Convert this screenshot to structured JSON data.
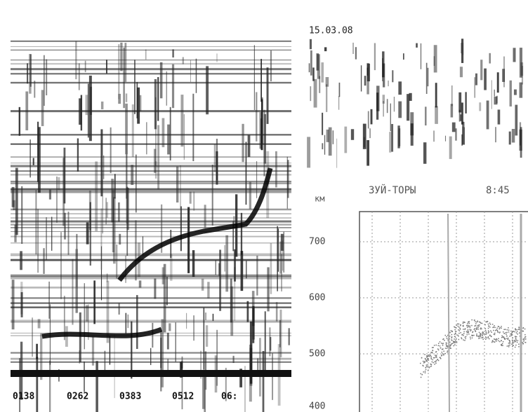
{
  "header": {
    "date": "15.03.08"
  },
  "left_panel": {
    "x_labels": [
      "0138",
      "0262",
      "0383",
      "0512",
      "06:"
    ]
  },
  "right_panel": {
    "station": "ЗУЙ-ТОРЫ",
    "time": "8:45",
    "unit": "км",
    "y_labels": [
      "700",
      "600",
      "500",
      "400"
    ]
  }
}
